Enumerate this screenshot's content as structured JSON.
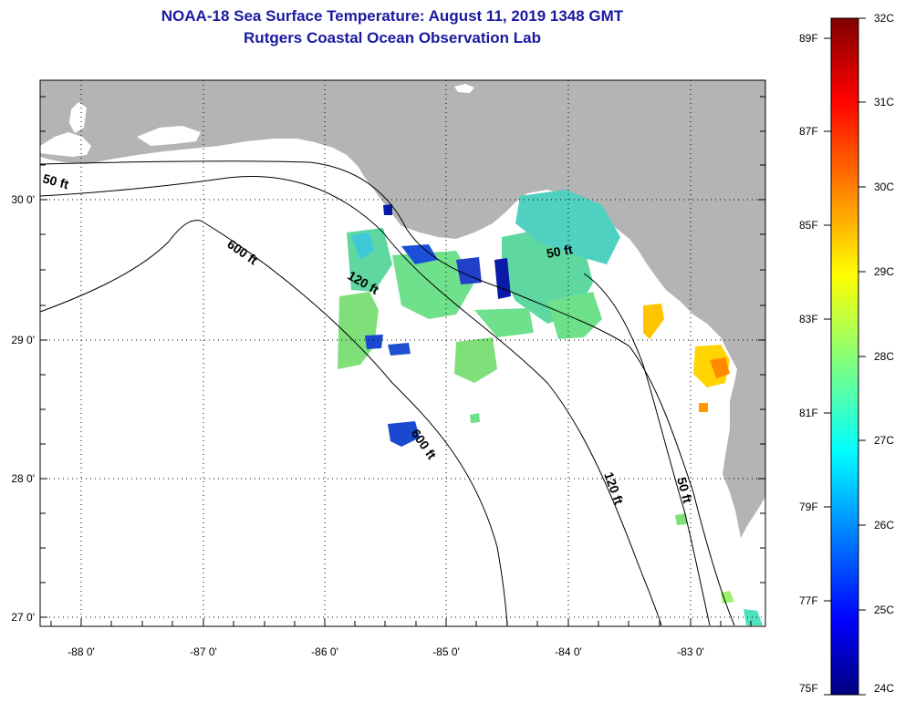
{
  "title": "NOAA-18 Sea Surface Temperature:  August 11, 2019 1348 GMT",
  "subtitle": "Rutgers Coastal Ocean Observation Lab",
  "map": {
    "lon_ticks": [
      "-88 0'",
      "-87 0'",
      "-86 0'",
      "-85 0'",
      "-84 0'",
      "-83 0'"
    ],
    "lat_ticks": [
      "30 0'",
      "29 0'",
      "28 0'",
      "27 0'"
    ],
    "depth_labels": [
      "50 ft",
      "600 ft",
      "120 ft",
      "50 ft",
      "600 ft",
      "120 ft",
      "50 ft"
    ],
    "land_color": "#b4b4b4",
    "water_color": "#ffffff"
  },
  "colorbar": {
    "celsius": [
      "32C",
      "31C",
      "30C",
      "29C",
      "28C",
      "27C",
      "26C",
      "25C",
      "24C"
    ],
    "fahrenheit": [
      "89F",
      "87F",
      "85F",
      "83F",
      "81F",
      "79F",
      "77F",
      "75F"
    ],
    "range_c": [
      24,
      32
    ],
    "range_f": [
      75,
      89.6
    ]
  }
}
